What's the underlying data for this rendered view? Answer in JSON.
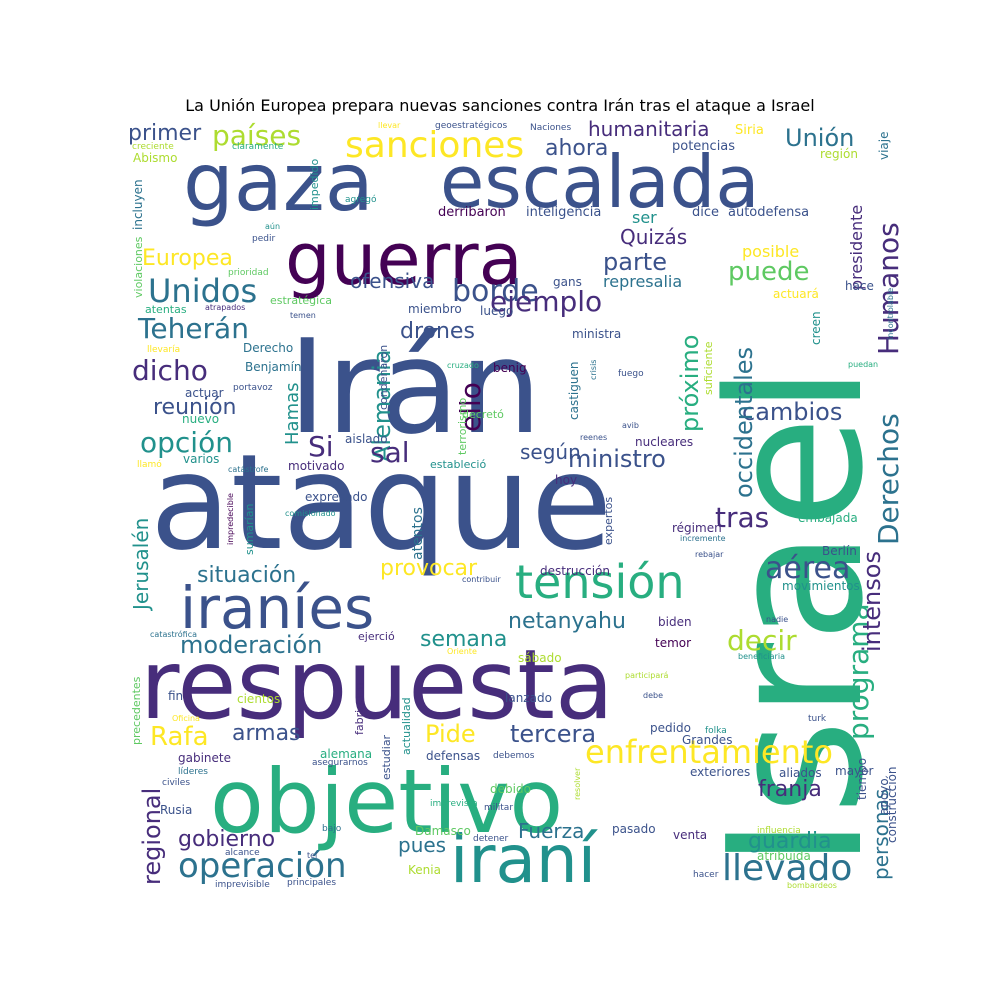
{
  "title": "La Unión Europea prepara nuevas sanciones contra Irán tras el ataque a Israel",
  "palette": [
    "#440154",
    "#472d7b",
    "#3b528b",
    "#2c728e",
    "#21918c",
    "#28ae80",
    "#5ec962",
    "#addc30",
    "#fde725"
  ],
  "words": [
    "ataque",
    "Irán",
    "respuesta",
    "Israel",
    "objetivo",
    "gaza",
    "escalada",
    "guerra",
    "iraní",
    "iraníes",
    "tensión",
    "sanciones",
    "enfrentamiento",
    "operación",
    "llevado",
    "Unidos",
    "países",
    "borde",
    "Humanos",
    "Derechos",
    "ejemplo",
    "opción",
    "Teherán",
    "dicho",
    "puede",
    "Unión",
    "humanitaria",
    "ahora",
    "primer",
    "Europea",
    "parte",
    "Quizás",
    "drones",
    "ofensiva",
    "Alemania",
    "reunión",
    "ministro",
    "sal",
    "Si",
    "ello",
    "cambios",
    "próximo",
    "occidentales",
    "según",
    "tras",
    "aérea",
    "situación",
    "provocar",
    "moderación",
    "semana",
    "netanyahu",
    "decir",
    "programa",
    "intensos",
    "Jerusalén",
    "Rafa",
    "armas",
    "Pide",
    "tercera",
    "franja",
    "regional",
    "gobierno",
    "guardia",
    "personas",
    "Fuerza",
    "pues",
    "Hamas",
    "represalia",
    "posible",
    "ser",
    "presidente",
    "dice",
    "autodefensa",
    "inteligencia",
    "derribaron",
    "potencias",
    "Siria",
    "región",
    "viaje",
    "impedido",
    "incluyen",
    "violaciones",
    "Abismo",
    "creciente",
    "claramente",
    "geoestratégicos",
    "Naciones",
    "llevar",
    "agregó",
    "aún",
    "pedir",
    "prioridad",
    "atentas",
    "atrapados",
    "temen",
    "estratégica",
    "miembro",
    "luego",
    "gans",
    "actuará",
    "hace",
    "incontrolable",
    "creen",
    "puedan",
    "llevaría",
    "Derecho",
    "Benjamín",
    "actuar",
    "portavoz",
    "nuevo",
    "varios",
    "llamó",
    "condenaron",
    "terrorismo",
    "cruzado",
    "benig",
    "castiguen",
    "crisis",
    "suficiente",
    "fuego",
    "decretó",
    "ministra",
    "aislado",
    "motivado",
    "catástrofe",
    "estableció",
    "nucleares",
    "reenes",
    "avib",
    "hoy",
    "expresado",
    "comisionado",
    "impredecible",
    "sumarían",
    "atentos",
    "expertos",
    "régimen",
    "incremente",
    "embajada",
    "rebajar",
    "Berlín",
    "movimientos",
    "destrucción",
    "contribuir",
    "biden",
    "nadie",
    "sábado",
    "Oriente",
    "ejerció",
    "temor",
    "catastrófica",
    "beneficiaria",
    "fin",
    "cientos",
    "lanzado",
    "participará",
    "debe",
    "precedentes",
    "Oficina",
    "fabriquen",
    "actualidad",
    "estudiar",
    "pedido",
    "folka",
    "turk",
    "Grandes",
    "gabinete",
    "alemana",
    "defensas",
    "debemos",
    "aliados",
    "exteriores",
    "líderes",
    "civiles",
    "asegurarnos",
    "imprevista",
    "resolver",
    "militar",
    "debido",
    "tiempo",
    "apoyo",
    "construcción",
    "mayor",
    "Rusia",
    "bajo",
    "Damasco",
    "detener",
    "pasado",
    "influencia",
    "atribuida",
    "alcance",
    "tel",
    "Kenia",
    "venta",
    "hacer",
    "imprevisible",
    "principales",
    "bombardeos"
  ]
}
